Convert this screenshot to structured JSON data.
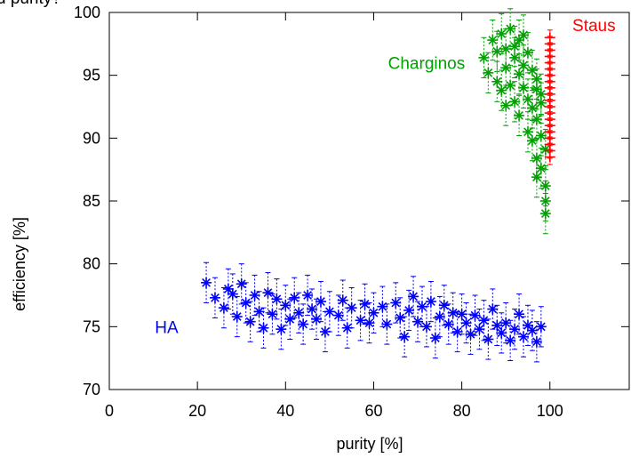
{
  "chart_data": {
    "type": "scatter",
    "title_fragment": "d purity?",
    "xlabel": "purity [%]",
    "ylabel": "efficiency [%]",
    "xlim": [
      0,
      118
    ],
    "ylim": [
      70,
      100
    ],
    "xticks": [
      0,
      20,
      40,
      60,
      80,
      100
    ],
    "yticks": [
      70,
      75,
      80,
      85,
      90,
      95,
      100
    ],
    "xtick_labels": [
      "0",
      "20",
      "40",
      "60",
      "80",
      "100"
    ],
    "ytick_labels": [
      "70",
      "75",
      "80",
      "85",
      "90",
      "95",
      "100"
    ],
    "grid": false,
    "marker": "asterisk-with-error-bars",
    "series": [
      {
        "name": "HA",
        "color": "#0000ff",
        "points": [
          [
            22,
            78.5
          ],
          [
            24,
            77.3
          ],
          [
            26,
            76.5
          ],
          [
            27,
            78.0
          ],
          [
            28,
            77.6
          ],
          [
            29,
            75.8
          ],
          [
            30,
            78.4
          ],
          [
            31,
            76.9
          ],
          [
            32,
            75.4
          ],
          [
            33,
            77.5
          ],
          [
            34,
            76.2
          ],
          [
            35,
            74.9
          ],
          [
            36,
            77.7
          ],
          [
            37,
            76.0
          ],
          [
            38,
            77.2
          ],
          [
            39,
            74.8
          ],
          [
            40,
            76.7
          ],
          [
            41,
            75.6
          ],
          [
            42,
            77.3
          ],
          [
            43,
            76.1
          ],
          [
            44,
            75.2
          ],
          [
            45,
            77.5
          ],
          [
            46,
            76.4
          ],
          [
            47,
            75.6
          ],
          [
            48,
            77.0
          ],
          [
            49,
            74.6
          ],
          [
            50,
            76.2
          ],
          [
            52,
            75.9
          ],
          [
            53,
            77.1
          ],
          [
            54,
            74.9
          ],
          [
            55,
            76.5
          ],
          [
            57,
            75.5
          ],
          [
            58,
            76.8
          ],
          [
            59,
            75.3
          ],
          [
            60,
            76.1
          ],
          [
            62,
            76.6
          ],
          [
            63,
            75.2
          ],
          [
            65,
            76.9
          ],
          [
            66,
            75.7
          ],
          [
            67,
            74.2
          ],
          [
            68,
            76.3
          ],
          [
            69,
            77.4
          ],
          [
            70,
            75.4
          ],
          [
            71,
            76.6
          ],
          [
            72,
            75.0
          ],
          [
            73,
            77.0
          ],
          [
            74,
            74.1
          ],
          [
            75,
            75.8
          ],
          [
            76,
            76.7
          ],
          [
            77,
            75.2
          ],
          [
            78,
            76.1
          ],
          [
            79,
            74.6
          ],
          [
            80,
            76.0
          ],
          [
            81,
            75.3
          ],
          [
            82,
            74.4
          ],
          [
            83,
            75.9
          ],
          [
            84,
            74.8
          ],
          [
            85,
            75.5
          ],
          [
            86,
            74.0
          ],
          [
            87,
            76.4
          ],
          [
            88,
            75.1
          ],
          [
            89,
            74.5
          ],
          [
            90,
            75.3
          ],
          [
            91,
            73.9
          ],
          [
            92,
            74.8
          ],
          [
            93,
            76.0
          ],
          [
            94,
            74.2
          ],
          [
            95,
            75.1
          ],
          [
            96,
            74.7
          ],
          [
            97,
            73.8
          ],
          [
            98,
            75.0
          ]
        ]
      },
      {
        "name": "Charginos",
        "color": "#00a000",
        "points": [
          [
            85,
            96.4
          ],
          [
            86,
            95.2
          ],
          [
            87,
            97.8
          ],
          [
            88,
            94.5
          ],
          [
            88,
            96.9
          ],
          [
            89,
            93.8
          ],
          [
            89,
            98.3
          ],
          [
            90,
            95.6
          ],
          [
            90,
            97.1
          ],
          [
            91,
            98.7
          ],
          [
            91,
            94.2
          ],
          [
            92,
            96.4
          ],
          [
            92,
            92.9
          ],
          [
            93,
            97.8
          ],
          [
            93,
            95.1
          ],
          [
            93,
            91.8
          ],
          [
            94,
            98.2
          ],
          [
            94,
            94.0
          ],
          [
            95,
            96.8
          ],
          [
            95,
            93.1
          ],
          [
            95,
            90.5
          ],
          [
            96,
            95.4
          ],
          [
            96,
            92.4
          ],
          [
            96,
            89.8
          ],
          [
            97,
            94.7
          ],
          [
            97,
            91.5
          ],
          [
            97,
            88.4
          ],
          [
            97,
            86.9
          ],
          [
            98,
            93.5
          ],
          [
            98,
            90.2
          ],
          [
            98,
            87.6
          ],
          [
            99,
            89.1
          ],
          [
            99,
            86.2
          ],
          [
            99,
            85.0
          ],
          [
            99,
            84.0
          ],
          [
            98,
            92.8
          ],
          [
            97,
            93.9
          ],
          [
            94,
            95.8
          ],
          [
            92,
            97.3
          ],
          [
            90,
            92.6
          ]
        ]
      },
      {
        "name": "Staus",
        "color": "#ff0000",
        "points": [
          [
            100,
            98.0
          ],
          [
            100,
            97.5
          ],
          [
            100,
            97.0
          ],
          [
            100,
            96.5
          ],
          [
            100,
            96.0
          ],
          [
            100,
            95.5
          ],
          [
            100,
            95.0
          ],
          [
            100,
            94.5
          ],
          [
            100,
            94.0
          ],
          [
            100,
            93.5
          ],
          [
            100,
            93.0
          ],
          [
            100,
            92.5
          ],
          [
            100,
            92.0
          ],
          [
            100,
            91.5
          ],
          [
            100,
            91.0
          ],
          [
            100,
            90.5
          ],
          [
            100,
            90.0
          ],
          [
            100,
            89.5
          ],
          [
            100,
            89.0
          ],
          [
            100,
            88.5
          ]
        ]
      }
    ],
    "annotations": [
      {
        "text": "HA",
        "x": 13,
        "y": 75,
        "color": "#0000ff"
      },
      {
        "text": "Charginos",
        "x": 72,
        "y": 96,
        "color": "#00a000"
      },
      {
        "text": "Staus",
        "x": 110,
        "y": 99,
        "color": "#ff0000"
      }
    ]
  }
}
